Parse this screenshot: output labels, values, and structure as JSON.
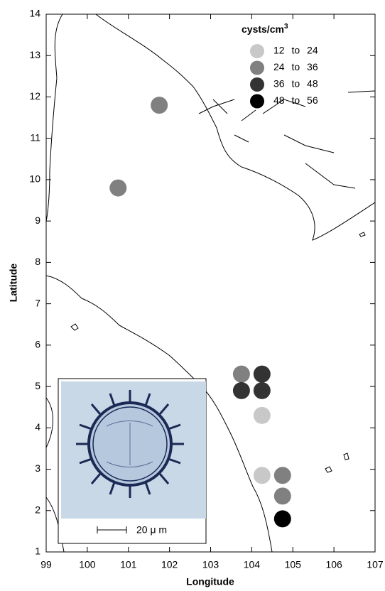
{
  "chart_data": {
    "type": "scatter",
    "xlabel": "Longitude",
    "ylabel": "Latitude",
    "xlim": [
      99,
      107
    ],
    "ylim": [
      1,
      14
    ],
    "xticks": [
      99,
      100,
      101,
      102,
      103,
      104,
      105,
      106,
      107
    ],
    "yticks": [
      1,
      2,
      3,
      4,
      5,
      6,
      7,
      8,
      9,
      10,
      11,
      12,
      13,
      14
    ],
    "legend_title": "cysts/cm",
    "legend_title_superscript": "3",
    "series": [
      {
        "name": "12 to 24",
        "color": "#c8c8c8",
        "x": [
          104.25,
          104.25
        ],
        "values": [
          4.3,
          2.85
        ]
      },
      {
        "name": "24 to 36",
        "color": "#808080",
        "x": [
          101.75,
          100.75,
          103.75,
          104.75,
          104.75
        ],
        "values": [
          11.8,
          9.8,
          5.3,
          2.85,
          2.35
        ]
      },
      {
        "name": "36 to 48",
        "color": "#333333",
        "x": [
          104.25,
          103.75,
          104.25
        ],
        "values": [
          5.3,
          4.9,
          4.9
        ]
      },
      {
        "name": "48 to 56",
        "color": "#000000",
        "x": [
          104.75
        ],
        "values": [
          1.8
        ]
      }
    ],
    "inset_scale_label": "20 μ m"
  }
}
